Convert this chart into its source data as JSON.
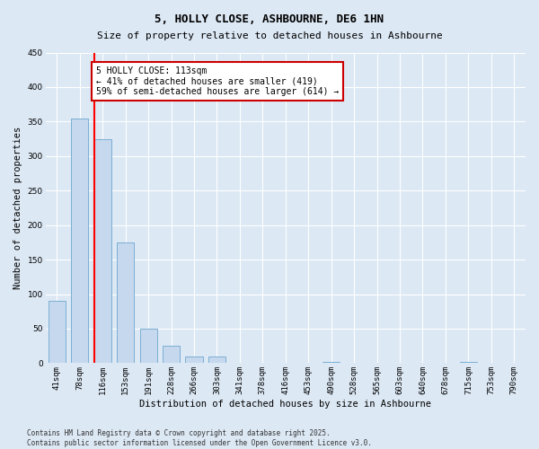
{
  "title": "5, HOLLY CLOSE, ASHBOURNE, DE6 1HN",
  "subtitle": "Size of property relative to detached houses in Ashbourne",
  "xlabel": "Distribution of detached houses by size in Ashbourne",
  "ylabel": "Number of detached properties",
  "categories": [
    "41sqm",
    "78sqm",
    "116sqm",
    "153sqm",
    "191sqm",
    "228sqm",
    "266sqm",
    "303sqm",
    "341sqm",
    "378sqm",
    "416sqm",
    "453sqm",
    "490sqm",
    "528sqm",
    "565sqm",
    "603sqm",
    "640sqm",
    "678sqm",
    "715sqm",
    "753sqm",
    "790sqm"
  ],
  "values": [
    90,
    355,
    325,
    175,
    50,
    25,
    10,
    10,
    0,
    0,
    0,
    0,
    2,
    0,
    0,
    0,
    0,
    0,
    2,
    0,
    0
  ],
  "bar_color": "#c5d8ee",
  "bar_edge_color": "#7bafd4",
  "red_line_index": 2,
  "ylim": [
    0,
    450
  ],
  "yticks": [
    0,
    50,
    100,
    150,
    200,
    250,
    300,
    350,
    400,
    450
  ],
  "annotation_text": "5 HOLLY CLOSE: 113sqm\n← 41% of detached houses are smaller (419)\n59% of semi-detached houses are larger (614) →",
  "annotation_box_facecolor": "#ffffff",
  "annotation_box_edgecolor": "#cc0000",
  "background_color": "#dce8f4",
  "plot_bg_color": "#dce8f4",
  "footer_line1": "Contains HM Land Registry data © Crown copyright and database right 2025.",
  "footer_line2": "Contains public sector information licensed under the Open Government Licence v3.0.",
  "title_fontsize": 9,
  "subtitle_fontsize": 8,
  "axis_label_fontsize": 7.5,
  "tick_fontsize": 6.5,
  "annotation_fontsize": 7,
  "footer_fontsize": 5.5
}
